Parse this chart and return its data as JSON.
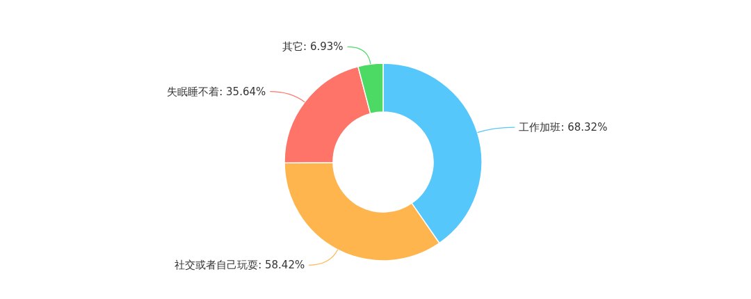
{
  "chart_data": {
    "type": "donut",
    "categories": [
      "工作加班",
      "社交或者自己玩耍",
      "失眠睡不着",
      "其它"
    ],
    "values": [
      68.32,
      58.42,
      35.64,
      6.93
    ],
    "value_labels": [
      "68.32%",
      "58.42%",
      "35.64%",
      "6.93%"
    ],
    "colors": [
      "#56c7fb",
      "#ffb54e",
      "#ff7468",
      "#4cd964"
    ]
  }
}
